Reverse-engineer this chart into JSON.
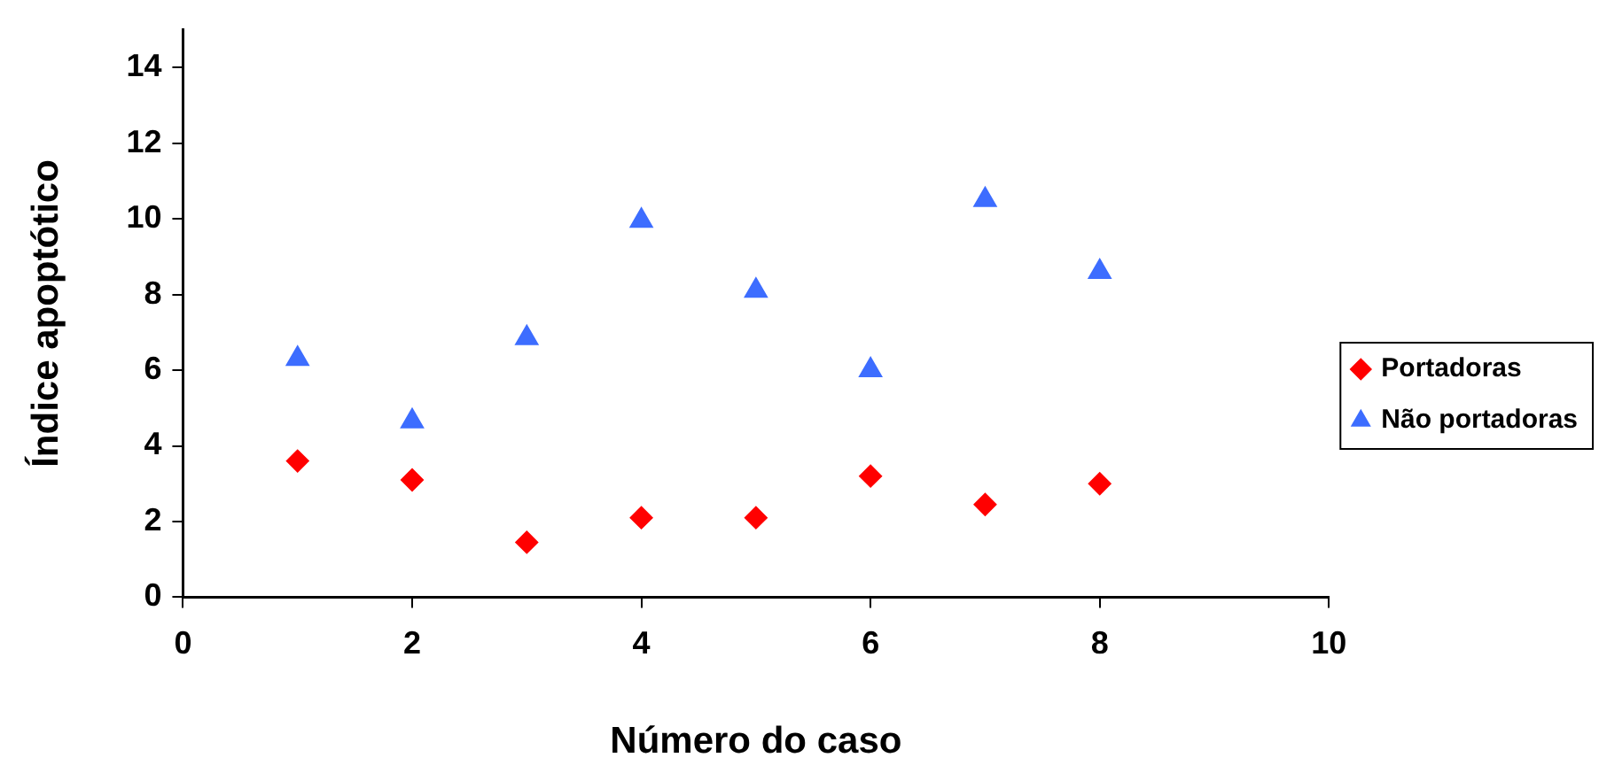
{
  "chart_data": {
    "type": "scatter",
    "xlabel": "Número do caso",
    "ylabel": "Índice apoptótico",
    "x": [
      1,
      2,
      3,
      4,
      5,
      6,
      7,
      8
    ],
    "series": [
      {
        "name": "Portadoras",
        "color": "#ff0000",
        "marker": "diamond",
        "values": [
          3.6,
          3.1,
          1.45,
          2.1,
          2.1,
          3.2,
          2.45,
          3.0
        ]
      },
      {
        "name": "Não portadoras",
        "color": "#3d6dff",
        "marker": "triangle",
        "values": [
          6.3,
          4.65,
          6.85,
          9.95,
          8.1,
          6.0,
          10.5,
          8.6
        ]
      }
    ],
    "xlim": [
      0,
      10
    ],
    "xticks": [
      0,
      2,
      4,
      6,
      8,
      10
    ],
    "ylim": [
      0,
      15
    ],
    "yticks": [
      0,
      2,
      4,
      6,
      8,
      10,
      12,
      14
    ],
    "grid": false,
    "legend": "right"
  }
}
